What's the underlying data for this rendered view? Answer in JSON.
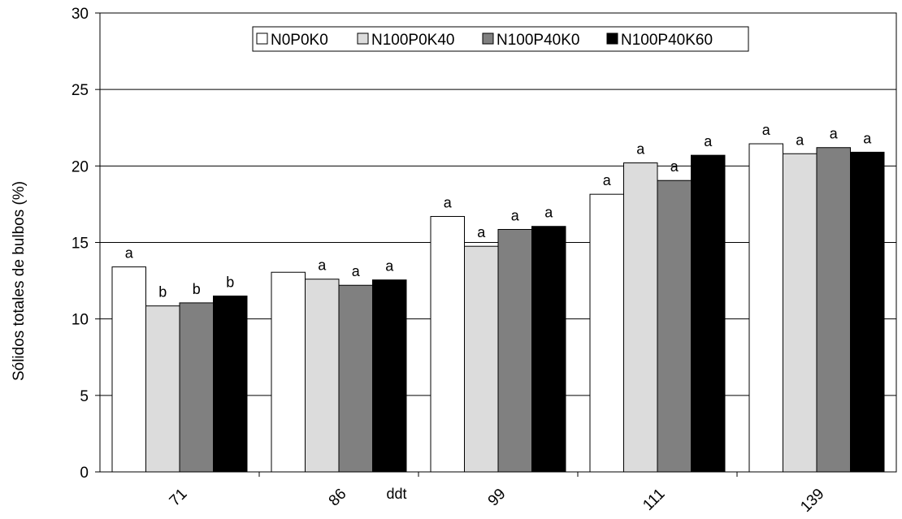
{
  "chart_data": {
    "type": "bar",
    "title": "",
    "xlabel": "ddt",
    "ylabel": "Sólidos totales de bulbos (%)",
    "ylim": [
      0,
      30
    ],
    "yticks": [
      0,
      5,
      10,
      15,
      20,
      25,
      30
    ],
    "grid": true,
    "legend_position": "top",
    "categories": [
      "71",
      "86",
      "99",
      "111",
      "139"
    ],
    "series": [
      {
        "name": "N0P0K0",
        "color": "#ffffff",
        "values": [
          13.4,
          13.05,
          16.7,
          18.15,
          21.45
        ],
        "labels": [
          "a",
          "",
          "a",
          "a",
          "a"
        ]
      },
      {
        "name": "N100P0K40",
        "color": "#dcdcdc",
        "values": [
          10.85,
          12.6,
          14.75,
          20.2,
          20.8
        ],
        "labels": [
          "b",
          "a",
          "a",
          "a",
          "a"
        ]
      },
      {
        "name": "N100P40K0",
        "color": "#808080",
        "values": [
          11.05,
          12.2,
          15.85,
          19.05,
          21.2
        ],
        "labels": [
          "b",
          "a",
          "a",
          "a",
          "a"
        ]
      },
      {
        "name": "N100P40K60",
        "color": "#000000",
        "values": [
          11.5,
          12.55,
          16.05,
          20.7,
          20.9
        ],
        "labels": [
          "b",
          "a",
          "a",
          "a",
          "a"
        ]
      }
    ]
  }
}
